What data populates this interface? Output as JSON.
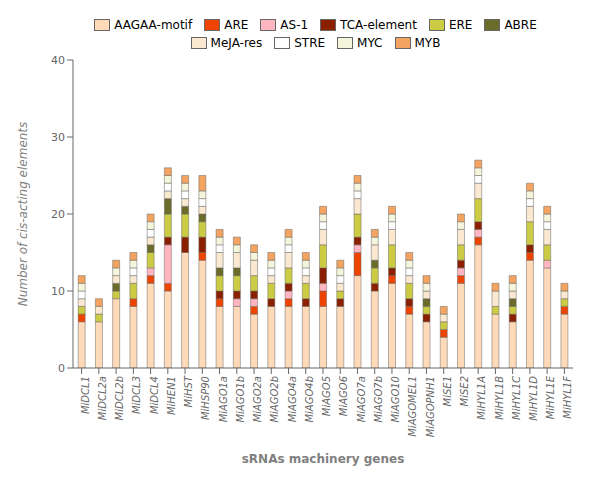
{
  "chart_data": {
    "type": "bar",
    "stacked": true,
    "grid": false,
    "legend": "top",
    "xlabel": "sRNAs machinery genes",
    "ylabel": "Number of cis-acting elements",
    "categories": [
      "MiDCL1",
      "MiDCL2a",
      "MiDCL2b",
      "MiDCL3",
      "MiDCL4",
      "MiHEN1",
      "MiHST",
      "MiHSP90",
      "MiAGO1a",
      "MiAGO1b",
      "MiAGO2a",
      "MiAGO2b",
      "MiAGO4a",
      "MiAGO4b",
      "MiAGO5",
      "MiAGO6",
      "MiAGO7a",
      "MiAGO7b",
      "MiAGO10",
      "MiAGOMEL1",
      "MiAGOPNH1",
      "MiSE1",
      "MiSE2",
      "MiHYL1A",
      "MiHYL1B",
      "MiHYL1C",
      "MiHYL1D",
      "MiHYL1E",
      "MiHYL1F"
    ],
    "ylim": [
      0,
      40
    ],
    "yticks": [
      0,
      10,
      20,
      30,
      40
    ],
    "series": [
      {
        "name": "AAGAA-motif",
        "color": "#FFDAB9",
        "values": [
          6,
          6,
          9,
          8,
          11,
          10,
          15,
          14,
          8,
          8,
          7,
          8,
          8,
          8,
          8,
          8,
          12,
          10,
          11,
          7,
          6,
          4,
          11,
          16,
          7,
          6,
          14,
          13,
          7
        ]
      },
      {
        "name": "ARE",
        "color": "#EE4400",
        "values": [
          1,
          0,
          0,
          1,
          1,
          1,
          0,
          1,
          1,
          0,
          1,
          0,
          1,
          0,
          2,
          0,
          3,
          0,
          1,
          1,
          0,
          1,
          1,
          1,
          0,
          0,
          1,
          0,
          1
        ]
      },
      {
        "name": "AS-1",
        "color": "#FFB6C1",
        "values": [
          0,
          0,
          0,
          0,
          1,
          5,
          0,
          0,
          0,
          1,
          1,
          0,
          1,
          0,
          1,
          0,
          1,
          0,
          0,
          0,
          0,
          0,
          1,
          1,
          0,
          0,
          0,
          1,
          0
        ]
      },
      {
        "name": "TCA-element",
        "color": "#8B2000",
        "values": [
          0,
          0,
          0,
          0,
          0,
          1,
          2,
          2,
          1,
          1,
          1,
          1,
          1,
          1,
          2,
          1,
          1,
          1,
          1,
          1,
          1,
          0,
          1,
          1,
          0,
          1,
          1,
          0,
          0
        ]
      },
      {
        "name": "ERE",
        "color": "#CCCC44",
        "values": [
          1,
          1,
          1,
          2,
          2,
          3,
          3,
          2,
          2,
          2,
          2,
          2,
          2,
          2,
          3,
          1,
          3,
          2,
          3,
          2,
          1,
          1,
          2,
          3,
          1,
          1,
          3,
          2,
          1
        ]
      },
      {
        "name": "ABRE",
        "color": "#6B6B2A",
        "values": [
          0,
          0,
          1,
          0,
          1,
          2,
          1,
          1,
          1,
          1,
          0,
          0,
          0,
          0,
          0,
          0,
          0,
          1,
          0,
          0,
          1,
          0,
          0,
          0,
          0,
          1,
          0,
          0,
          0
        ]
      },
      {
        "name": "MeJA-res",
        "color": "#FAE8D0",
        "values": [
          1,
          1,
          1,
          1,
          1,
          1,
          1,
          1,
          2,
          2,
          2,
          1,
          2,
          1,
          2,
          1,
          2,
          2,
          2,
          1,
          1,
          1,
          2,
          2,
          2,
          1,
          2,
          2,
          1
        ]
      },
      {
        "name": "STRE",
        "color": "#FFFFFF",
        "values": [
          1,
          0,
          0,
          1,
          1,
          1,
          1,
          1,
          1,
          0,
          0,
          1,
          1,
          1,
          1,
          1,
          1,
          0,
          1,
          1,
          0,
          0,
          0,
          1,
          0,
          0,
          1,
          1,
          0
        ]
      },
      {
        "name": "MYC",
        "color": "#F5F5DC",
        "values": [
          1,
          0,
          1,
          1,
          1,
          1,
          1,
          1,
          1,
          1,
          1,
          1,
          1,
          1,
          1,
          1,
          1,
          1,
          1,
          1,
          1,
          0,
          1,
          1,
          0,
          1,
          1,
          1,
          0
        ]
      },
      {
        "name": "MYB",
        "color": "#F4A460",
        "values": [
          1,
          1,
          1,
          1,
          1,
          1,
          1,
          2,
          1,
          1,
          1,
          1,
          1,
          1,
          1,
          1,
          1,
          1,
          1,
          1,
          1,
          1,
          1,
          1,
          1,
          1,
          1,
          1,
          1
        ]
      }
    ]
  }
}
